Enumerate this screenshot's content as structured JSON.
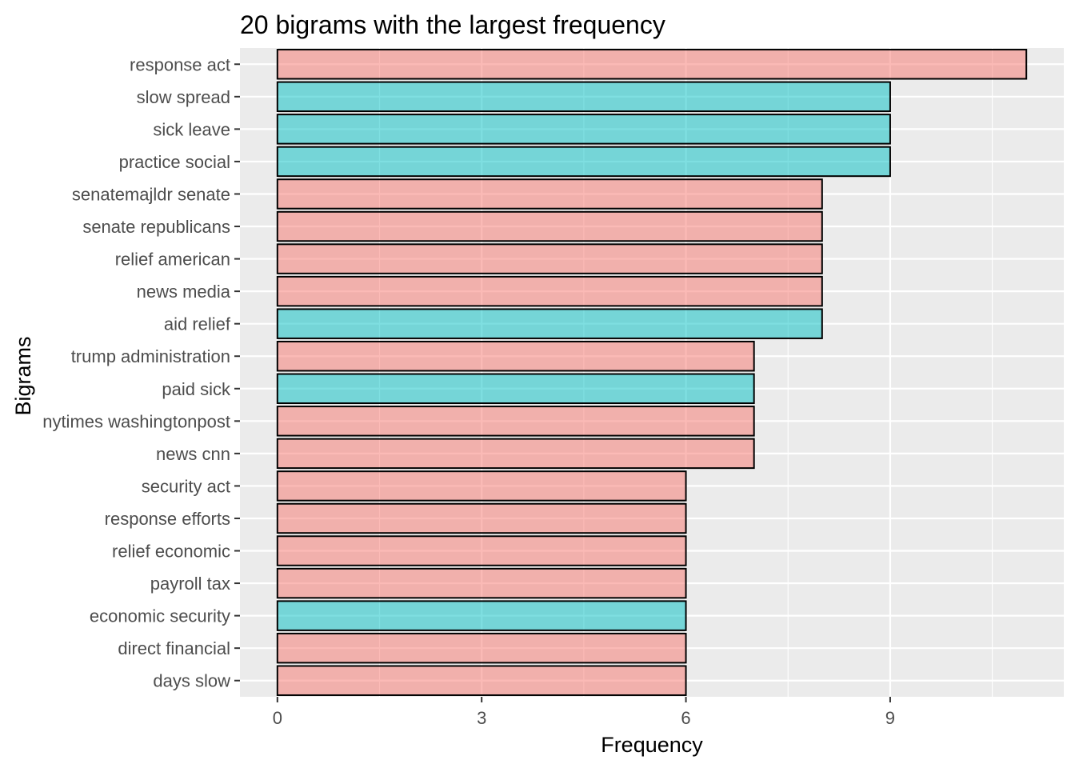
{
  "chart_data": {
    "type": "bar",
    "orientation": "horizontal",
    "title": "20 bigrams with the largest frequency",
    "xlabel": "Frequency",
    "ylabel": "Bigrams",
    "xlim": [
      -0.55,
      11.55
    ],
    "xticks": [
      0,
      3,
      6,
      9
    ],
    "grid": true,
    "legend": "none",
    "colors": {
      "group_a": "#F8766D",
      "group_b": "#00BFC4",
      "panel": "#EBEBEB",
      "gridline": "#FFFFFF",
      "bar_border": "#000000",
      "tick_text": "#4D4D4D",
      "tick_mark": "#333333"
    },
    "bar_opacity": 0.5,
    "categories": [
      "response act",
      "slow spread",
      "sick leave",
      "practice social",
      "senatemajldr senate",
      "senate republicans",
      "relief american",
      "news media",
      "aid relief",
      "trump administration",
      "paid sick",
      "nytimes washingtonpost",
      "news cnn",
      "security act",
      "response efforts",
      "relief economic",
      "payroll tax",
      "economic security",
      "direct financial",
      "days slow"
    ],
    "values": [
      11,
      9,
      9,
      9,
      8,
      8,
      8,
      8,
      8,
      7,
      7,
      7,
      7,
      6,
      6,
      6,
      6,
      6,
      6,
      6
    ],
    "groups": [
      "a",
      "b",
      "b",
      "b",
      "a",
      "a",
      "a",
      "a",
      "b",
      "a",
      "b",
      "a",
      "a",
      "a",
      "a",
      "a",
      "a",
      "b",
      "a",
      "a"
    ]
  }
}
